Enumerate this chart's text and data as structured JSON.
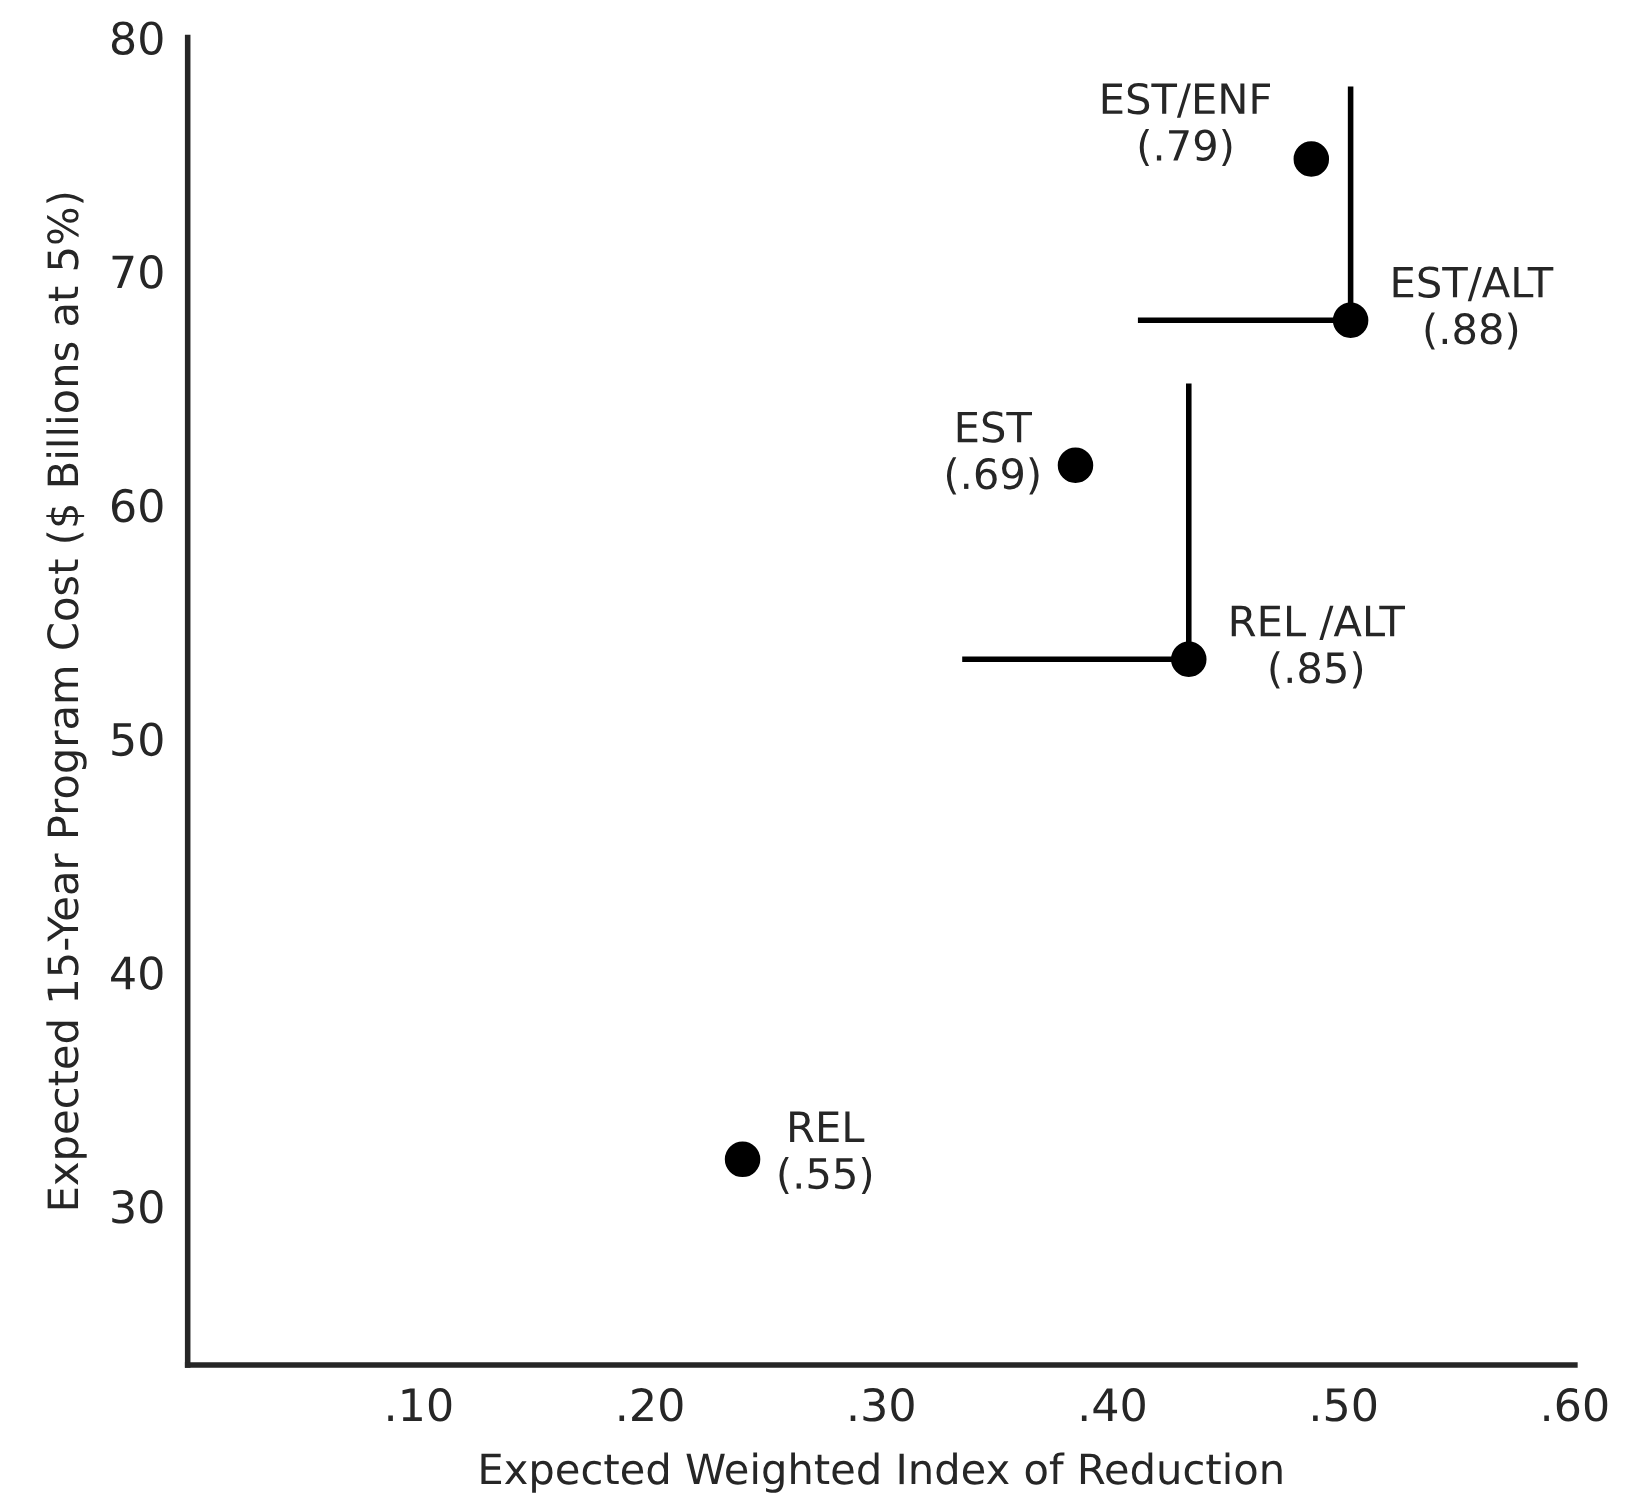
{
  "chart_data": {
    "type": "scatter",
    "xlabel": "Expected Weighted Index of Reduction",
    "ylabel": "Expected 15-Year Program Cost ($ Billions at 5%)",
    "x": [
      0.24,
      0.384,
      0.433,
      0.486,
      0.503
    ],
    "series": [
      {
        "color": "#000000",
        "values": [
          32.0,
          61.7,
          53.4,
          74.8,
          67.9
        ],
        "errors": [
          null,
          null,
          [
            53.4,
            65.2
          ],
          null,
          [
            67.9,
            77.9
          ]
        ],
        "xerrors": [
          null,
          null,
          [
            0.335,
            0.433
          ],
          null,
          [
            0.411,
            0.503
          ]
        ]
      }
    ],
    "xlim": [
      0,
      0.6
    ],
    "ylim": [
      23.2,
      80
    ],
    "xticks": [
      {
        "value": 0.1,
        "label": ".10"
      },
      {
        "value": 0.2,
        "label": ".20"
      },
      {
        "value": 0.3,
        "label": ".30"
      },
      {
        "value": 0.4,
        "label": ".40"
      },
      {
        "value": 0.5,
        "label": ".50"
      },
      {
        "value": 0.6,
        "label": ".60"
      }
    ],
    "yticks": [
      30,
      40,
      50,
      60,
      70,
      80
    ],
    "marker": "circle",
    "grid": false,
    "legend": false,
    "annotations": [
      {
        "text": "REL\n(.55)",
        "x": 0.24,
        "y": 32.0
      },
      {
        "text": "EST\n(.69)",
        "x": 0.384,
        "y": 61.7
      },
      {
        "text": "REL /ALT\n(.85)",
        "x": 0.433,
        "y": 53.4
      },
      {
        "text": "EST/ENF\n(.79)",
        "x": 0.486,
        "y": 74.8
      },
      {
        "text": "EST/ALT\n(.88)",
        "x": 0.503,
        "y": 67.9
      }
    ]
  }
}
